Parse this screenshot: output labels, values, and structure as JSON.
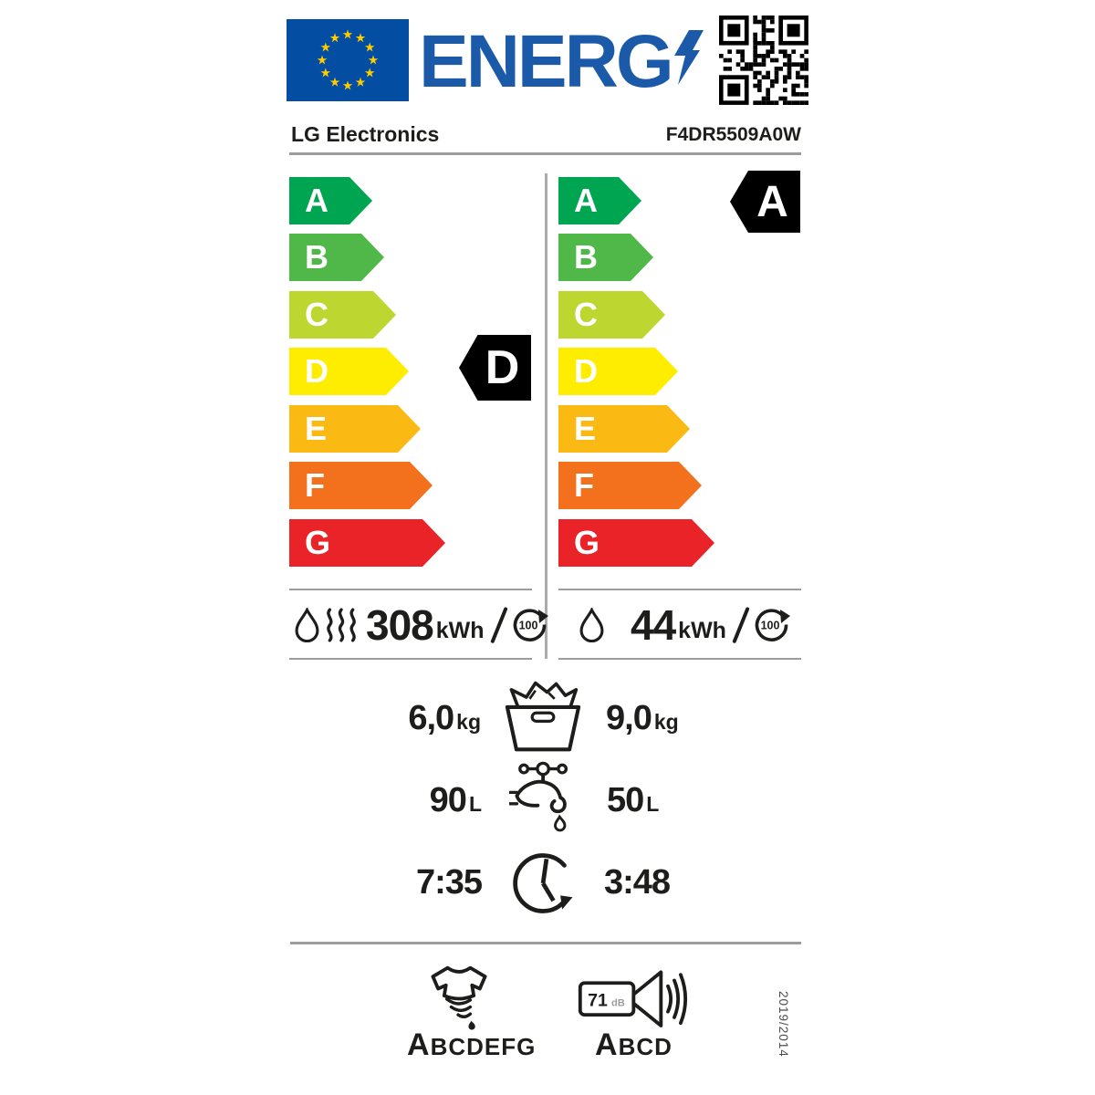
{
  "header": {
    "wordmark": "ENERG",
    "brand": "LG Electronics",
    "model": "F4DR5509A0W"
  },
  "scale": {
    "letters": [
      "A",
      "B",
      "C",
      "D",
      "E",
      "F",
      "G"
    ],
    "colors": [
      "#00a551",
      "#50b848",
      "#bed630",
      "#ffed00",
      "#fbb914",
      "#f3701d",
      "#e92328"
    ]
  },
  "complete_cycle": {
    "class": "D",
    "energy": "308",
    "energy_unit": "kWh",
    "per": "100",
    "capacity": "6,0",
    "capacity_unit": "kg",
    "water": "90",
    "water_unit": "L",
    "duration": "7:35"
  },
  "washing_cycle": {
    "class": "A",
    "energy": "44",
    "energy_unit": "kWh",
    "per": "100",
    "capacity": "9,0",
    "capacity_unit": "kg",
    "water": "50",
    "water_unit": "L",
    "duration": "3:48"
  },
  "spin": {
    "grade": "A",
    "scale_rest": "BCDEFG"
  },
  "noise": {
    "value": "71",
    "unit": "dB",
    "grade": "A",
    "scale_rest": "BCD"
  },
  "regulation": "2019/2014"
}
